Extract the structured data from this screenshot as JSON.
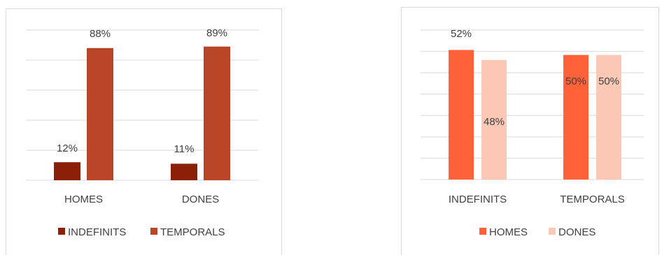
{
  "chart_data": [
    {
      "type": "bar",
      "categories": [
        "HOMES",
        "DONES"
      ],
      "series": [
        {
          "name": "INDEFINITS",
          "values": [
            12,
            11
          ],
          "color": "#8b1f08"
        },
        {
          "name": "TEMPORALS",
          "values": [
            88,
            89
          ],
          "color": "#b84626"
        }
      ],
      "data_labels": [
        [
          "12%",
          "11%"
        ],
        [
          "88%",
          "89%"
        ]
      ],
      "ylim": [
        0,
        100
      ],
      "grid": true,
      "legend": "bottom"
    },
    {
      "type": "bar",
      "categories": [
        "INDEFINITS",
        "TEMPORALS"
      ],
      "series": [
        {
          "name": "HOMES",
          "values": [
            52,
            50
          ],
          "color": "#ff6138"
        },
        {
          "name": "DONES",
          "values": [
            48,
            50
          ],
          "color": "#fcc8b6"
        }
      ],
      "data_labels": [
        [
          "52%",
          "50%"
        ],
        [
          "48%",
          "50%"
        ]
      ],
      "ylim": [
        0,
        60
      ],
      "grid": true,
      "legend": "bottom"
    }
  ]
}
